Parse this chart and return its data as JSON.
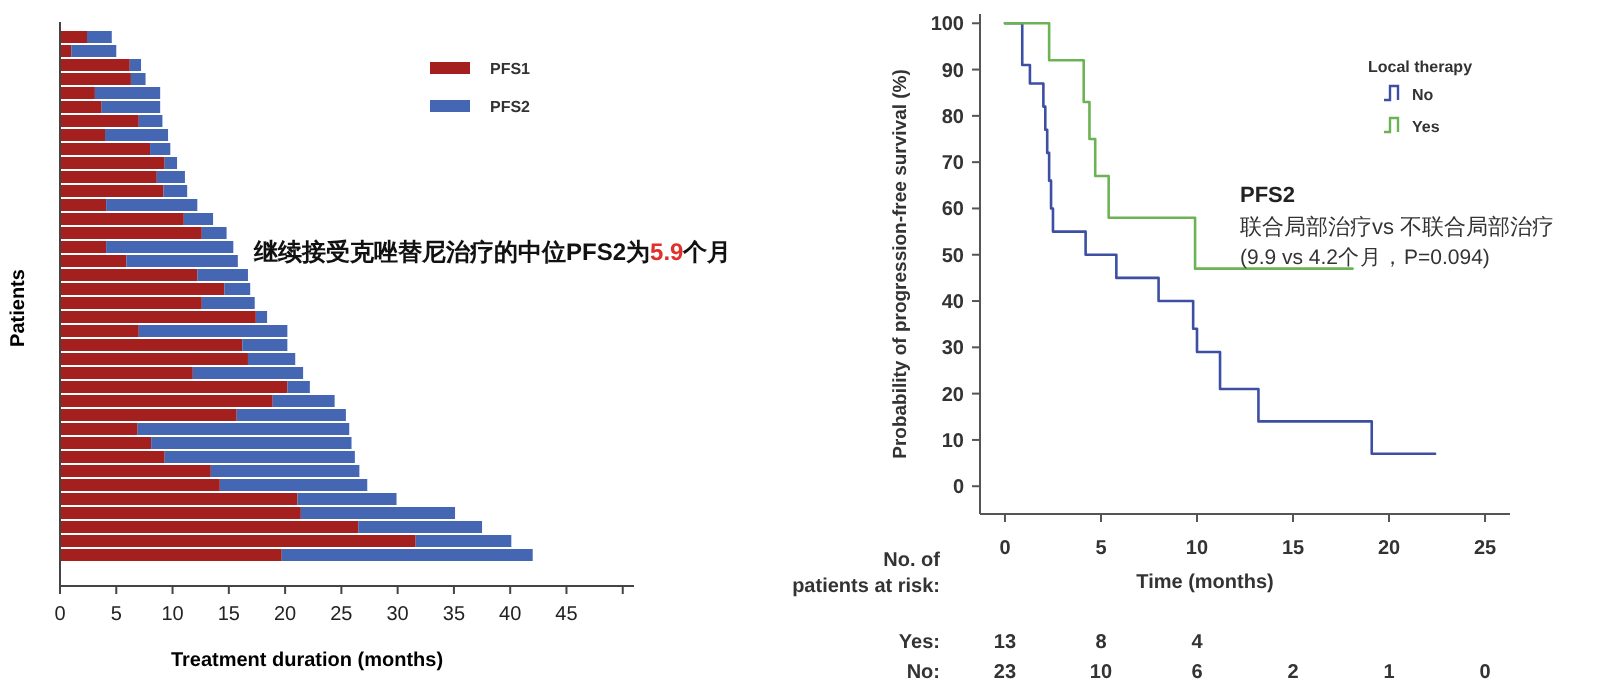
{
  "chart_data": [
    {
      "type": "bar",
      "orientation": "horizontal",
      "stacked": true,
      "ylabel": "Patients",
      "xlabel": "Treatment duration (months)",
      "categories": [
        null,
        null,
        null,
        null,
        null,
        null,
        null,
        null,
        null,
        null,
        null,
        null,
        null,
        null,
        null,
        null,
        null,
        null,
        null,
        null,
        null,
        null,
        null,
        null,
        null,
        null,
        null,
        null,
        null,
        null,
        null,
        null,
        null,
        null,
        null,
        null,
        null,
        null
      ],
      "series": [
        {
          "name": "PFS1",
          "color": "#a3201e",
          "values": [
            2.4,
            1.0,
            6.2,
            6.3,
            3.1,
            3.7,
            7.0,
            4.0,
            8.0,
            9.3,
            8.6,
            9.2,
            4.1,
            11.0,
            12.6,
            4.1,
            5.9,
            12.2,
            14.6,
            12.6,
            17.4,
            7.0,
            16.2,
            16.7,
            11.8,
            20.2,
            18.9,
            15.7,
            6.9,
            8.1,
            9.3,
            13.4,
            14.2,
            21.1,
            21.4,
            26.5,
            31.6,
            19.7
          ]
        },
        {
          "name": "PFS2",
          "color": "#4466b3",
          "values": [
            2.2,
            4.0,
            1.0,
            1.3,
            5.8,
            5.2,
            2.1,
            5.6,
            1.8,
            1.1,
            2.5,
            2.1,
            8.1,
            2.6,
            2.2,
            11.3,
            9.9,
            4.5,
            2.3,
            4.7,
            1.0,
            13.2,
            4.0,
            4.2,
            9.8,
            2.0,
            5.5,
            9.7,
            18.8,
            17.8,
            16.9,
            13.2,
            13.1,
            8.8,
            13.7,
            11.0,
            8.5,
            22.3
          ]
        }
      ],
      "xlim": [
        0,
        51
      ],
      "xticks": [
        0,
        5,
        10,
        15,
        20,
        25,
        30,
        35,
        40,
        45,
        {
          "value": 50,
          "label": null
        }
      ],
      "tick_labels": "x",
      "legend": "top right",
      "annotations": [
        "继续接受克唑替尼治疗的中位PFS2为",
        "5.9",
        "个月"
      ]
    },
    {
      "type": "step",
      "xlabel": "Time (months)",
      "ylabel": "Probability of progression-free survival (%)",
      "legend_title": "Local therapy",
      "series": [
        {
          "name": "No",
          "color": "#3d4fa3",
          "x": [
            0,
            0.9,
            1.3,
            2.0,
            2.1,
            2.2,
            2.3,
            2.4,
            2.5,
            4.2,
            5.8,
            8.0,
            9.8,
            10.0,
            11.2,
            13.2,
            19.1,
            22.4
          ],
          "values": [
            100,
            91,
            87,
            82,
            77,
            72,
            66,
            60,
            55,
            50,
            45,
            40,
            34,
            29,
            21,
            14,
            7,
            7
          ]
        },
        {
          "name": "Yes",
          "color": "#6db356",
          "x": [
            0,
            2.3,
            4.1,
            4.4,
            4.7,
            5.4,
            9.9,
            18.1
          ],
          "values": [
            100,
            92,
            83,
            75,
            67,
            58,
            47,
            47
          ]
        }
      ],
      "xlim": [
        -1.3,
        26.3
      ],
      "xticks": [
        0,
        5,
        10,
        15,
        20,
        25
      ],
      "ylim": [
        -6,
        102
      ],
      "yticks": [
        0,
        10,
        20,
        30,
        40,
        50,
        60,
        70,
        80,
        90,
        100
      ],
      "legend": "top right",
      "marker": "none",
      "line_style": "solid",
      "annotations": [
        "PFS2",
        "联合局部治疗vs 不联合局部治疗",
        "(9.9 vs 4.2个月，P=0.094)",
        "No. of patients at risk:",
        "Yes:",
        "13",
        "8",
        "4",
        "No:",
        "23",
        "10",
        "6",
        "2",
        "1",
        "0"
      ]
    }
  ]
}
